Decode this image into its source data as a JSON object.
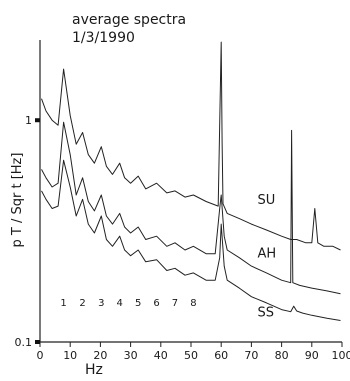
{
  "chart_data": {
    "type": "line",
    "title_lines": [
      "average spectra",
      "1/3/1990"
    ],
    "xlabel": "Hz",
    "ylabel": "p T / Sqr t [Hz]",
    "xlim": [
      0,
      100
    ],
    "ylim": [
      0.1,
      2.3
    ],
    "yscale": "log",
    "x_ticks": [
      0,
      10,
      20,
      30,
      40,
      50,
      60,
      70,
      80,
      90,
      100
    ],
    "y_ticks": [
      {
        "value": 0.1,
        "label": "0.1"
      },
      {
        "value": 1,
        "label": "1"
      }
    ],
    "grid": false,
    "peak_labels": [
      {
        "x": 7.8,
        "label": "1"
      },
      {
        "x": 14.1,
        "label": "2"
      },
      {
        "x": 20.3,
        "label": "3"
      },
      {
        "x": 26.4,
        "label": "4"
      },
      {
        "x": 32.5,
        "label": "5"
      },
      {
        "x": 38.6,
        "label": "6"
      },
      {
        "x": 44.7,
        "label": "7"
      },
      {
        "x": 50.8,
        "label": "8"
      }
    ],
    "series": [
      {
        "name": "SU",
        "label_at": {
          "x": 72,
          "y": 0.42
        },
        "x": [
          0.5,
          2,
          4,
          6,
          7.8,
          10,
          12,
          14.1,
          16,
          18,
          20.3,
          22,
          24,
          26.4,
          28,
          30,
          32.5,
          35,
          38.6,
          42,
          44.7,
          48,
          50.8,
          55,
          59,
          60,
          60.3,
          60.6,
          62,
          66,
          70,
          75,
          80,
          83,
          85,
          88,
          90,
          91,
          92,
          94,
          97,
          99.5
        ],
        "y": [
          1.25,
          1.1,
          1.0,
          0.95,
          1.7,
          1.05,
          0.78,
          0.88,
          0.7,
          0.64,
          0.76,
          0.62,
          0.57,
          0.64,
          0.55,
          0.52,
          0.56,
          0.49,
          0.52,
          0.47,
          0.48,
          0.45,
          0.46,
          0.43,
          0.41,
          2.25,
          0.8,
          0.42,
          0.38,
          0.36,
          0.34,
          0.32,
          0.3,
          0.29,
          0.29,
          0.28,
          0.28,
          0.4,
          0.28,
          0.27,
          0.27,
          0.26
        ]
      },
      {
        "name": "AH",
        "label_at": {
          "x": 72,
          "y": 0.24
        },
        "x": [
          0.5,
          2,
          4,
          6,
          7.8,
          10,
          12,
          14.1,
          16,
          18,
          20.3,
          22,
          24,
          26.4,
          28,
          30,
          32.5,
          35,
          38.6,
          42,
          44.7,
          48,
          50.8,
          55,
          58,
          59.5,
          60,
          61,
          62,
          66,
          70,
          75,
          80,
          83,
          83.3,
          83.7,
          86,
          90,
          95,
          99.5
        ],
        "y": [
          0.6,
          0.55,
          0.5,
          0.52,
          0.98,
          0.7,
          0.46,
          0.55,
          0.43,
          0.39,
          0.46,
          0.37,
          0.34,
          0.38,
          0.33,
          0.31,
          0.33,
          0.29,
          0.3,
          0.27,
          0.28,
          0.26,
          0.27,
          0.25,
          0.25,
          0.4,
          0.46,
          0.3,
          0.26,
          0.24,
          0.22,
          0.205,
          0.19,
          0.185,
          0.9,
          0.185,
          0.18,
          0.175,
          0.17,
          0.165
        ]
      },
      {
        "name": "SS",
        "label_at": {
          "x": 72,
          "y": 0.13
        },
        "x": [
          0.5,
          2,
          4,
          6,
          7.8,
          10,
          12,
          14.1,
          16,
          18,
          20.3,
          22,
          24,
          26.4,
          28,
          30,
          32.5,
          35,
          38.6,
          42,
          44.7,
          48,
          50.8,
          55,
          58,
          59.5,
          60,
          61,
          62,
          66,
          70,
          75,
          80,
          83,
          84,
          85,
          87,
          90,
          95,
          99.5
        ],
        "y": [
          0.48,
          0.44,
          0.4,
          0.41,
          0.66,
          0.5,
          0.37,
          0.44,
          0.34,
          0.31,
          0.37,
          0.29,
          0.27,
          0.3,
          0.26,
          0.245,
          0.26,
          0.23,
          0.235,
          0.21,
          0.215,
          0.2,
          0.205,
          0.19,
          0.19,
          0.24,
          0.34,
          0.22,
          0.19,
          0.175,
          0.16,
          0.15,
          0.14,
          0.137,
          0.145,
          0.138,
          0.135,
          0.132,
          0.128,
          0.125
        ]
      }
    ]
  }
}
